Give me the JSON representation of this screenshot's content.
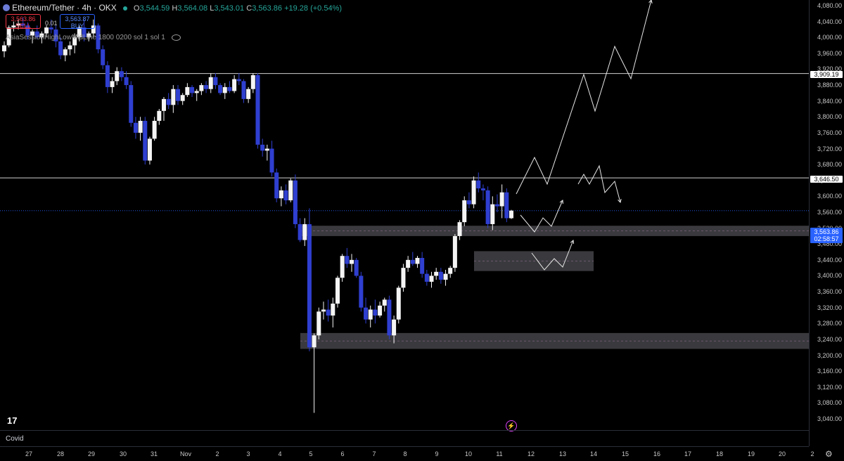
{
  "header": {
    "symbol": "Ethereum/Tether · 4h · OKX",
    "open_label": "O",
    "open": "3,544.59",
    "high_label": "H",
    "high": "3,564.08",
    "low_label": "L",
    "low": "3,543.01",
    "close_label": "C",
    "close": "3,563.86",
    "change": "+19.28 (+0.54%)"
  },
  "trade": {
    "sell_price": "3,563.86",
    "sell_label": "SELL",
    "spread": "0.01",
    "buy_price": "3,563.87",
    "buy_label": "BUY"
  },
  "indicator": {
    "label": "AsiaSessionHighLowMidLine 1800 0200 sol 1 sol 1"
  },
  "bottom_panel": {
    "label": "Covid"
  },
  "colors": {
    "bull": "#f5f5f5",
    "bear": "#2f3fd0",
    "accent": "#2962ff",
    "down": "#f23645"
  },
  "icons": {
    "logo": "tv-logo",
    "settings": "gear-icon",
    "eye": "eye-icon",
    "flash": "lightning-icon"
  },
  "tv_logo_text": "17",
  "flash_glyph": "⚡",
  "settings_glyph": "⚙",
  "price_axis": {
    "ticks": [
      "4,080.00",
      "4,040.00",
      "4,000.00",
      "3,960.00",
      "3,920.00",
      "3,880.00",
      "3,840.00",
      "3,800.00",
      "3,760.00",
      "3,720.00",
      "3,680.00",
      "3,640.00",
      "3,600.00",
      "3,560.00",
      "3,520.00",
      "3,480.00",
      "3,440.00",
      "3,400.00",
      "3,360.00",
      "3,320.00",
      "3,280.00",
      "3,240.00",
      "3,200.00",
      "3,160.00",
      "3,120.00",
      "3,080.00",
      "3,040.00"
    ],
    "level_1": "3,909.19",
    "level_2": "3,646.50",
    "current_price": "3,563.86",
    "countdown": "02:58:57"
  },
  "time_axis": [
    "27",
    "28",
    "29",
    "30",
    "31",
    "Nov",
    "2",
    "3",
    "4",
    "5",
    "6",
    "7",
    "8",
    "9",
    "10",
    "11",
    "12",
    "13",
    "14",
    "15",
    "16",
    "17",
    "18",
    "19",
    "20",
    "2"
  ],
  "chart_data": {
    "type": "candlestick",
    "horizontal_levels": [
      3909.19,
      3646.5
    ],
    "zones": [
      [
        3500,
        3526
      ],
      [
        3412,
        3462
      ],
      [
        3216,
        3256
      ]
    ],
    "candles": [
      [
        3965,
        3990,
        3950,
        3980
      ],
      [
        3980,
        4030,
        3975,
        4025
      ],
      [
        4025,
        4040,
        4015,
        4030
      ],
      [
        4030,
        4045,
        4020,
        4035
      ],
      [
        4035,
        4050,
        4025,
        4030
      ],
      [
        4030,
        4038,
        3995,
        4005
      ],
      [
        4005,
        4020,
        3985,
        4015
      ],
      [
        4015,
        4030,
        3995,
        4000
      ],
      [
        4000,
        4015,
        3985,
        4010
      ],
      [
        4010,
        4030,
        4000,
        4025
      ],
      [
        4025,
        4045,
        4010,
        4020
      ],
      [
        4020,
        4030,
        3975,
        3990
      ],
      [
        3990,
        4000,
        3945,
        3955
      ],
      [
        3955,
        3975,
        3940,
        3970
      ],
      [
        3970,
        3990,
        3955,
        3980
      ],
      [
        3980,
        4010,
        3960,
        4000
      ],
      [
        4000,
        4030,
        3990,
        4025
      ],
      [
        4025,
        4045,
        3990,
        4000
      ],
      [
        4000,
        4015,
        3990,
        4010
      ],
      [
        4010,
        4045,
        4000,
        4030
      ],
      [
        4030,
        4035,
        3960,
        3970
      ],
      [
        3970,
        3980,
        3920,
        3930
      ],
      [
        3930,
        3940,
        3860,
        3875
      ],
      [
        3875,
        3900,
        3860,
        3890
      ],
      [
        3890,
        3925,
        3880,
        3915
      ],
      [
        3915,
        3925,
        3890,
        3900
      ],
      [
        3900,
        3915,
        3870,
        3880
      ],
      [
        3880,
        3890,
        3775,
        3785
      ],
      [
        3785,
        3800,
        3745,
        3760
      ],
      [
        3760,
        3800,
        3740,
        3790
      ],
      [
        3790,
        3800,
        3680,
        3690
      ],
      [
        3690,
        3750,
        3680,
        3745
      ],
      [
        3745,
        3800,
        3740,
        3790
      ],
      [
        3790,
        3820,
        3780,
        3815
      ],
      [
        3815,
        3850,
        3790,
        3845
      ],
      [
        3845,
        3860,
        3820,
        3830
      ],
      [
        3830,
        3880,
        3810,
        3870
      ],
      [
        3870,
        3880,
        3830,
        3840
      ],
      [
        3840,
        3860,
        3830,
        3855
      ],
      [
        3855,
        3885,
        3850,
        3875
      ],
      [
        3875,
        3880,
        3850,
        3860
      ],
      [
        3860,
        3870,
        3840,
        3865
      ],
      [
        3865,
        3885,
        3855,
        3880
      ],
      [
        3880,
        3890,
        3860,
        3870
      ],
      [
        3870,
        3910,
        3860,
        3900
      ],
      [
        3900,
        3910,
        3870,
        3880
      ],
      [
        3880,
        3885,
        3855,
        3860
      ],
      [
        3860,
        3885,
        3845,
        3875
      ],
      [
        3875,
        3890,
        3860,
        3865
      ],
      [
        3865,
        3905,
        3860,
        3895
      ],
      [
        3895,
        3910,
        3880,
        3890
      ],
      [
        3890,
        3895,
        3835,
        3845
      ],
      [
        3845,
        3875,
        3835,
        3870
      ],
      [
        3870,
        3910,
        3860,
        3905
      ],
      [
        3905,
        3910,
        3720,
        3730
      ],
      [
        3730,
        3745,
        3700,
        3715
      ],
      [
        3715,
        3730,
        3690,
        3720
      ],
      [
        3720,
        3740,
        3650,
        3660
      ],
      [
        3660,
        3670,
        3585,
        3595
      ],
      [
        3595,
        3625,
        3575,
        3615
      ],
      [
        3615,
        3630,
        3580,
        3590
      ],
      [
        3590,
        3645,
        3585,
        3640
      ],
      [
        3640,
        3655,
        3520,
        3530
      ],
      [
        3530,
        3545,
        3485,
        3490
      ],
      [
        3490,
        3545,
        3475,
        3530
      ],
      [
        3530,
        3570,
        3210,
        3220
      ],
      [
        3220,
        3255,
        3055,
        3250
      ],
      [
        3250,
        3320,
        3240,
        3310
      ],
      [
        3310,
        3335,
        3290,
        3315
      ],
      [
        3315,
        3340,
        3285,
        3300
      ],
      [
        3300,
        3345,
        3270,
        3330
      ],
      [
        3330,
        3400,
        3320,
        3395
      ],
      [
        3395,
        3455,
        3385,
        3450
      ],
      [
        3450,
        3470,
        3420,
        3430
      ],
      [
        3430,
        3455,
        3410,
        3440
      ],
      [
        3440,
        3445,
        3395,
        3400
      ],
      [
        3400,
        3410,
        3310,
        3320
      ],
      [
        3320,
        3345,
        3280,
        3290
      ],
      [
        3290,
        3325,
        3270,
        3315
      ],
      [
        3315,
        3340,
        3280,
        3300
      ],
      [
        3300,
        3335,
        3295,
        3325
      ],
      [
        3325,
        3345,
        3310,
        3340
      ],
      [
        3340,
        3350,
        3240,
        3250
      ],
      [
        3250,
        3300,
        3230,
        3290
      ],
      [
        3290,
        3375,
        3280,
        3370
      ],
      [
        3370,
        3430,
        3360,
        3420
      ],
      [
        3420,
        3450,
        3410,
        3440
      ],
      [
        3440,
        3460,
        3425,
        3430
      ],
      [
        3430,
        3450,
        3420,
        3445
      ],
      [
        3445,
        3460,
        3395,
        3405
      ],
      [
        3405,
        3415,
        3375,
        3385
      ],
      [
        3385,
        3410,
        3370,
        3400
      ],
      [
        3400,
        3420,
        3390,
        3410
      ],
      [
        3410,
        3420,
        3380,
        3390
      ],
      [
        3390,
        3415,
        3375,
        3405
      ],
      [
        3405,
        3425,
        3395,
        3420
      ],
      [
        3420,
        3505,
        3410,
        3500
      ],
      [
        3500,
        3540,
        3490,
        3535
      ],
      [
        3535,
        3600,
        3525,
        3590
      ],
      [
        3590,
        3610,
        3570,
        3580
      ],
      [
        3580,
        3650,
        3570,
        3640
      ],
      [
        3640,
        3660,
        3610,
        3620
      ],
      [
        3620,
        3630,
        3590,
        3615
      ],
      [
        3615,
        3625,
        3520,
        3530
      ],
      [
        3530,
        3600,
        3515,
        3580
      ],
      [
        3580,
        3605,
        3560,
        3575
      ],
      [
        3575,
        3630,
        3545,
        3610
      ],
      [
        3610,
        3620,
        3535,
        3545
      ],
      [
        3545,
        3566,
        3543,
        3564
      ]
    ],
    "projections": [
      [
        [
          734,
          276
        ],
        [
          760,
          224
        ],
        [
          778,
          262
        ],
        [
          830,
          106
        ],
        [
          846,
          158
        ],
        [
          874,
          66
        ],
        [
          897,
          112
        ],
        [
          926,
          0
        ]
      ],
      [
        [
          822,
          262
        ],
        [
          830,
          248
        ],
        [
          838,
          262
        ],
        [
          852,
          236
        ],
        [
          860,
          274
        ],
        [
          874,
          258
        ],
        [
          882,
          288
        ]
      ],
      [
        [
          740,
          306
        ],
        [
          760,
          330
        ],
        [
          772,
          310
        ],
        [
          784,
          322
        ],
        [
          800,
          285
        ]
      ],
      [
        [
          756,
          360
        ],
        [
          774,
          384
        ],
        [
          788,
          368
        ],
        [
          800,
          380
        ],
        [
          815,
          342
        ]
      ]
    ]
  }
}
